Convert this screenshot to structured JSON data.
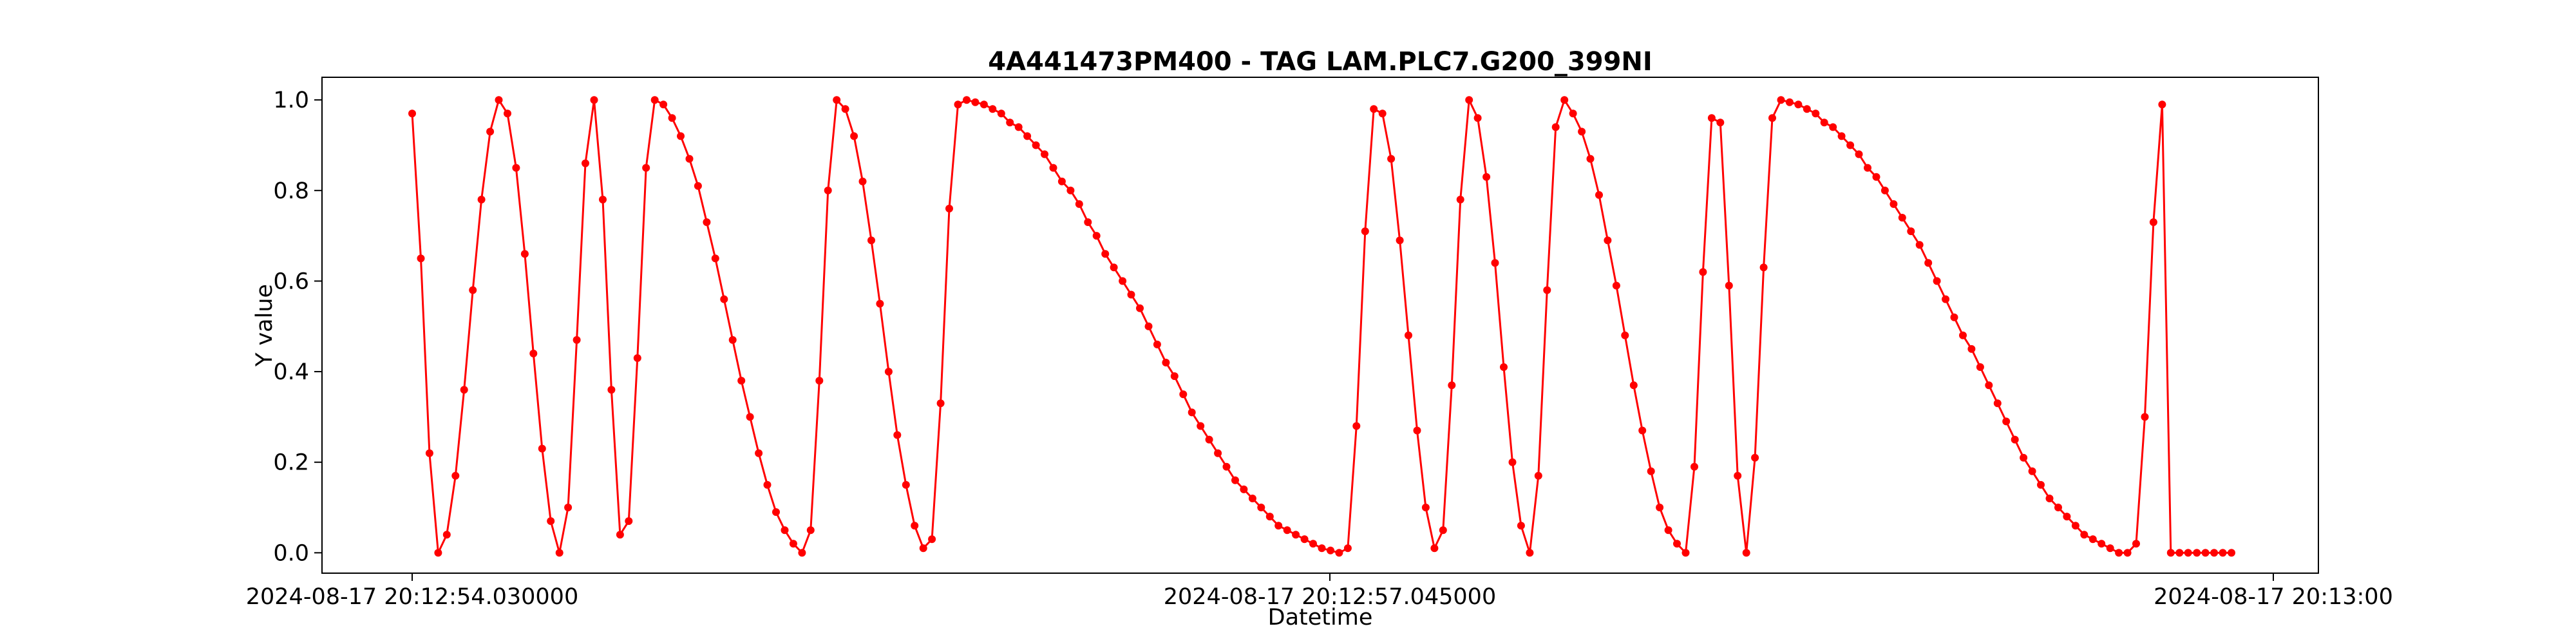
{
  "chart_data": {
    "type": "line",
    "title": "4A441473PM400 - TAG LAM.PLC7.G200_399NI",
    "xlabel": "Datetime",
    "ylabel": "Y value",
    "ylim": [
      -0.045,
      1.05
    ],
    "y_ticks": [
      "0.0",
      "0.2",
      "0.4",
      "0.6",
      "0.8",
      "1.0"
    ],
    "x_tick_labels": [
      "2024-08-17 20:12:54.030000",
      "2024-08-17 20:12:57.045000",
      "2024-08-17 20:13:00"
    ],
    "grid": false,
    "line_color": "#ff0000",
    "marker": "circle",
    "series": [
      {
        "values": [
          0.97,
          0.65,
          0.22,
          0.0,
          0.04,
          0.17,
          0.36,
          0.58,
          0.78,
          0.93,
          1.0,
          0.97,
          0.85,
          0.66,
          0.44,
          0.23,
          0.07,
          0.0,
          0.1,
          0.47,
          0.86,
          1.0,
          0.78,
          0.36,
          0.04,
          0.07,
          0.43,
          0.85,
          1.0,
          0.99,
          0.96,
          0.92,
          0.87,
          0.81,
          0.73,
          0.65,
          0.56,
          0.47,
          0.38,
          0.3,
          0.22,
          0.15,
          0.09,
          0.05,
          0.02,
          0.0,
          0.05,
          0.38,
          0.8,
          1.0,
          0.98,
          0.92,
          0.82,
          0.69,
          0.55,
          0.4,
          0.26,
          0.15,
          0.06,
          0.01,
          0.03,
          0.33,
          0.76,
          0.99,
          1.0,
          0.995,
          0.99,
          0.98,
          0.97,
          0.95,
          0.94,
          0.92,
          0.9,
          0.88,
          0.85,
          0.82,
          0.8,
          0.77,
          0.73,
          0.7,
          0.66,
          0.63,
          0.6,
          0.57,
          0.54,
          0.5,
          0.46,
          0.42,
          0.39,
          0.35,
          0.31,
          0.28,
          0.25,
          0.22,
          0.19,
          0.16,
          0.14,
          0.12,
          0.1,
          0.08,
          0.06,
          0.05,
          0.04,
          0.03,
          0.02,
          0.01,
          0.005,
          0.0,
          0.01,
          0.28,
          0.71,
          0.98,
          0.97,
          0.87,
          0.69,
          0.48,
          0.27,
          0.1,
          0.01,
          0.05,
          0.37,
          0.78,
          1.0,
          0.96,
          0.83,
          0.64,
          0.41,
          0.2,
          0.06,
          0.0,
          0.17,
          0.58,
          0.94,
          1.0,
          0.97,
          0.93,
          0.87,
          0.79,
          0.69,
          0.59,
          0.48,
          0.37,
          0.27,
          0.18,
          0.1,
          0.05,
          0.02,
          0.0,
          0.19,
          0.62,
          0.96,
          0.95,
          0.59,
          0.17,
          0.0,
          0.21,
          0.63,
          0.96,
          1.0,
          0.995,
          0.99,
          0.98,
          0.97,
          0.95,
          0.94,
          0.92,
          0.9,
          0.88,
          0.85,
          0.83,
          0.8,
          0.77,
          0.74,
          0.71,
          0.68,
          0.64,
          0.6,
          0.56,
          0.52,
          0.48,
          0.45,
          0.41,
          0.37,
          0.33,
          0.29,
          0.25,
          0.21,
          0.18,
          0.15,
          0.12,
          0.1,
          0.08,
          0.06,
          0.04,
          0.03,
          0.02,
          0.01,
          0.0,
          0.0,
          0.02,
          0.3,
          0.73,
          0.99,
          0.0,
          0.0,
          0.0,
          0.0,
          0.0,
          0.0,
          0.0,
          0.0
        ]
      }
    ]
  }
}
